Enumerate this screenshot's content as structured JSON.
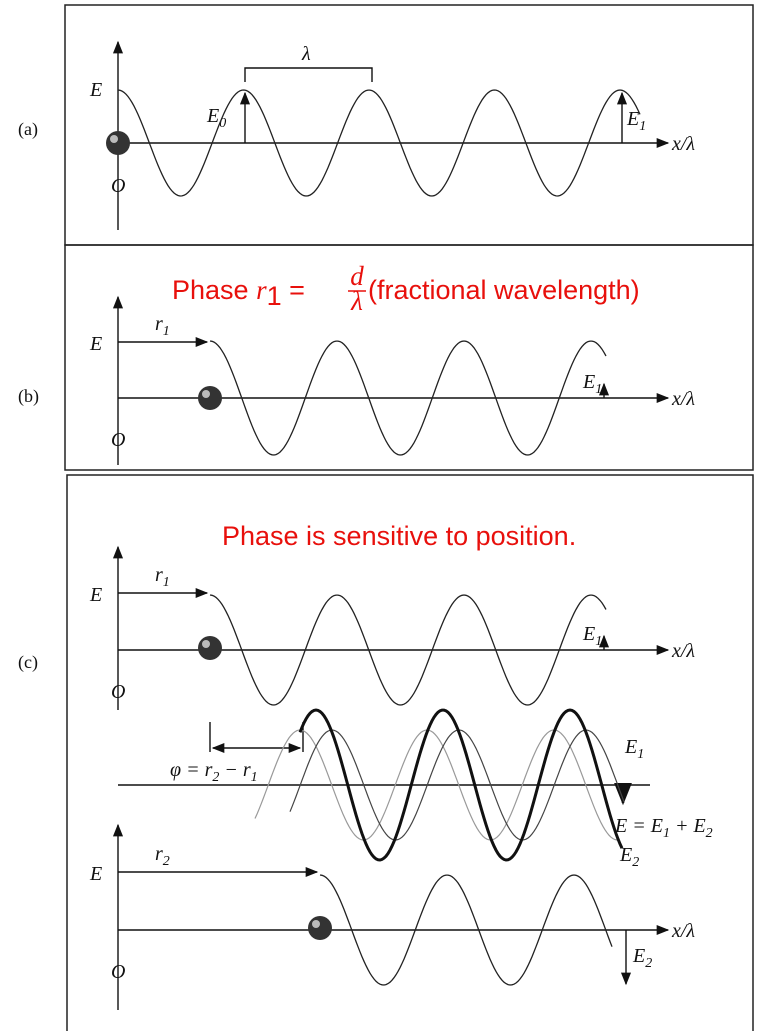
{
  "panel_a": {
    "label": "(a)",
    "axis_y": "E",
    "origin": "O",
    "x_axis": "x/λ",
    "wavelength": "λ",
    "amplitude": {
      "base": "E",
      "sub": "0"
    },
    "field_end": {
      "base": "E",
      "sub": "1"
    }
  },
  "panel_b": {
    "label": "(b)",
    "note": {
      "prefix": "Phase ",
      "var": "r",
      "sub": "1",
      "eq": " = ",
      "num": "d",
      "den": "λ",
      "suffix": " (fractional wavelength)"
    },
    "axis_y": "E",
    "origin": "O",
    "x_axis": "x/λ",
    "shift": {
      "base": "r",
      "sub": "1"
    },
    "field_end": {
      "base": "E",
      "sub": "1"
    }
  },
  "panel_c": {
    "label": "(c)",
    "note": "Phase is sensitive to position.",
    "top": {
      "axis_y": "E",
      "origin": "O",
      "x_axis": "x/λ",
      "shift": {
        "base": "r",
        "sub": "1"
      },
      "field_end": {
        "base": "E",
        "sub": "1"
      }
    },
    "middle": {
      "phase": {
        "lhs": "φ = ",
        "a": "r",
        "a_sub": "2",
        "op": " − ",
        "b": "r",
        "b_sub": "1"
      },
      "wave_1": {
        "base": "E",
        "sub": "1"
      },
      "sum": {
        "lhs": "E = ",
        "a": "E",
        "a_sub": "1",
        "op": " + ",
        "b": "E",
        "b_sub": "2"
      },
      "wave_2": {
        "base": "E",
        "sub": "2"
      }
    },
    "bottom": {
      "axis_y": "E",
      "origin": "O",
      "x_axis": "x/λ",
      "shift": {
        "base": "r",
        "sub": "2"
      },
      "field_end": {
        "base": "E",
        "sub": "2"
      }
    }
  }
}
